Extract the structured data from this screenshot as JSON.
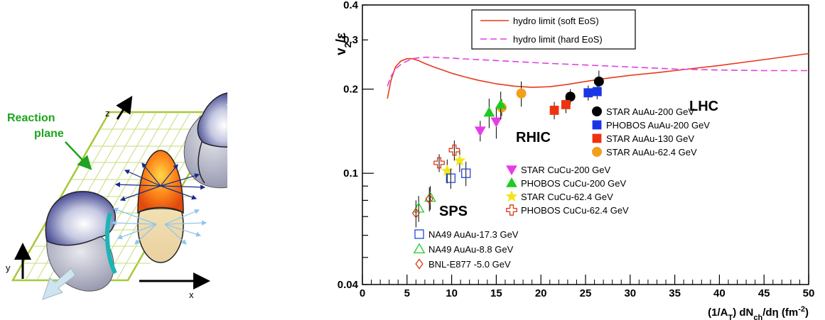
{
  "diagram": {
    "reaction_plane_line1": "Reaction",
    "reaction_plane_line2": "plane",
    "axis_x": "x",
    "axis_y": "y",
    "axis_z": "z"
  },
  "chart_data": {
    "type": "scatter",
    "xlabel_parts": [
      "(1/A",
      "T",
      ") dN",
      "ch",
      "/dη (fm",
      "-2",
      ")"
    ],
    "ylabel_parts": [
      "v",
      "2",
      "/ε"
    ],
    "xlim": [
      0,
      50
    ],
    "ylim": [
      0.04,
      0.4
    ],
    "y_scale": "log",
    "x_ticks": [
      0,
      5,
      10,
      15,
      20,
      25,
      30,
      35,
      40,
      45,
      50
    ],
    "y_tick_labels": [
      "0.04",
      "0.1",
      "0.2",
      "0.3",
      "0.4"
    ],
    "y_tick_values": [
      0.04,
      0.1,
      0.2,
      0.3,
      0.4
    ],
    "region_labels": [
      "SPS",
      "RHIC",
      "LHC"
    ],
    "curves": [
      {
        "name": "hydro limit (soft EoS)",
        "color": "#e8391c",
        "style": "solid",
        "x": [
          2.8,
          3.2,
          3.7,
          4.3,
          5.0,
          5.6,
          6.3,
          7.0,
          8.0,
          9.0,
          10.0,
          11.5,
          13.0,
          15.0,
          17.0,
          19.0,
          21.0,
          23.0,
          25.0,
          27.0,
          30.0,
          33.0,
          36.0,
          40.0,
          45.0,
          50.0
        ],
        "y": [
          0.185,
          0.215,
          0.24,
          0.252,
          0.257,
          0.257,
          0.253,
          0.247,
          0.24,
          0.234,
          0.228,
          0.221,
          0.215,
          0.209,
          0.205,
          0.203,
          0.204,
          0.208,
          0.213,
          0.218,
          0.224,
          0.229,
          0.235,
          0.243,
          0.255,
          0.268
        ]
      },
      {
        "name": "hydro limit (hard EoS)",
        "color": "#e040e0",
        "style": "dashed",
        "x": [
          2.8,
          3.2,
          3.7,
          4.3,
          5.0,
          5.6,
          6.3,
          7.0,
          8.0,
          9.0,
          10.0,
          12.0,
          14.0,
          17.0,
          20.0,
          25.0,
          30.0,
          35.0,
          40.0,
          45.0,
          50.0
        ],
        "y": [
          0.205,
          0.222,
          0.236,
          0.245,
          0.252,
          0.257,
          0.259,
          0.26,
          0.26,
          0.259,
          0.258,
          0.256,
          0.254,
          0.251,
          0.248,
          0.244,
          0.24,
          0.236,
          0.234,
          0.233,
          0.233
        ]
      }
    ],
    "legend_curves_placement": "top-left",
    "series": [
      {
        "name": "STAR AuAu-200 GeV",
        "marker": "circle",
        "color": "#000000",
        "filled": true,
        "points": [
          [
            23.3,
            0.188,
            0.012
          ],
          [
            26.5,
            0.213,
            0.02
          ]
        ]
      },
      {
        "name": "PHOBOS AuAu-200 GeV",
        "marker": "square",
        "color": "#1a35e8",
        "filled": true,
        "points": [
          [
            25.3,
            0.194,
            0.012
          ],
          [
            26.3,
            0.196,
            0.012
          ]
        ]
      },
      {
        "name": "STAR AuAu-130 GeV",
        "marker": "square",
        "color": "#ee3311",
        "filled": true,
        "points": [
          [
            21.5,
            0.168,
            0.012
          ],
          [
            22.8,
            0.176,
            0.012
          ]
        ]
      },
      {
        "name": "STAR AuAu-62.4 GeV",
        "marker": "circle",
        "color": "#f2a01c",
        "filled": true,
        "points": [
          [
            15.6,
            0.172,
            0.012
          ],
          [
            17.8,
            0.193,
            0.02
          ]
        ]
      },
      {
        "name": "STAR CuCu-200 GeV",
        "marker": "triangle-down",
        "color": "#e83ae8",
        "filled": true,
        "points": [
          [
            13.2,
            0.142,
            0.012
          ],
          [
            15.0,
            0.153,
            0.02
          ]
        ]
      },
      {
        "name": "PHOBOS CuCu-200 GeV",
        "marker": "triangle-up",
        "color": "#1ecc1e",
        "filled": true,
        "points": [
          [
            14.2,
            0.165,
            0.02
          ],
          [
            15.5,
            0.176,
            0.02
          ]
        ]
      },
      {
        "name": "STAR CuCu-62.4 GeV",
        "marker": "star",
        "color": "#f2e51c",
        "filled": true,
        "points": [
          [
            9.5,
            0.102,
            0.01
          ],
          [
            10.9,
            0.111,
            0.01
          ]
        ]
      },
      {
        "name": "PHOBOS CuCu-62.4 GeV",
        "marker": "cross",
        "color": "#d83a1a",
        "filled": false,
        "points": [
          [
            8.6,
            0.109,
            0.008
          ],
          [
            10.3,
            0.121,
            0.01
          ]
        ]
      },
      {
        "name": "NA49 AuAu-17.3 GeV",
        "marker": "square",
        "color": "#2244dd",
        "filled": false,
        "points": [
          [
            9.9,
            0.096,
            0.008
          ],
          [
            11.6,
            0.1,
            0.01
          ]
        ]
      },
      {
        "name": "NA49 AuAu-8.8 GeV",
        "marker": "triangle-up",
        "color": "#22cc22",
        "filled": false,
        "points": [
          [
            6.3,
            0.075,
            0.008
          ],
          [
            7.6,
            0.082,
            0.008
          ]
        ]
      },
      {
        "name": "BNL-E877 -5.0 GeV",
        "marker": "diamond",
        "color": "#d33a1a",
        "filled": false,
        "points": [
          [
            6.0,
            0.072,
            0.008
          ],
          [
            7.5,
            0.081,
            0.008
          ]
        ]
      }
    ],
    "legend_groups": [
      {
        "placement": "center-right",
        "series": [
          0,
          1,
          2,
          3
        ]
      },
      {
        "placement": "center",
        "series": [
          4,
          5,
          6,
          7
        ]
      },
      {
        "placement": "bottom-left",
        "series": [
          8,
          9,
          10
        ]
      }
    ]
  }
}
